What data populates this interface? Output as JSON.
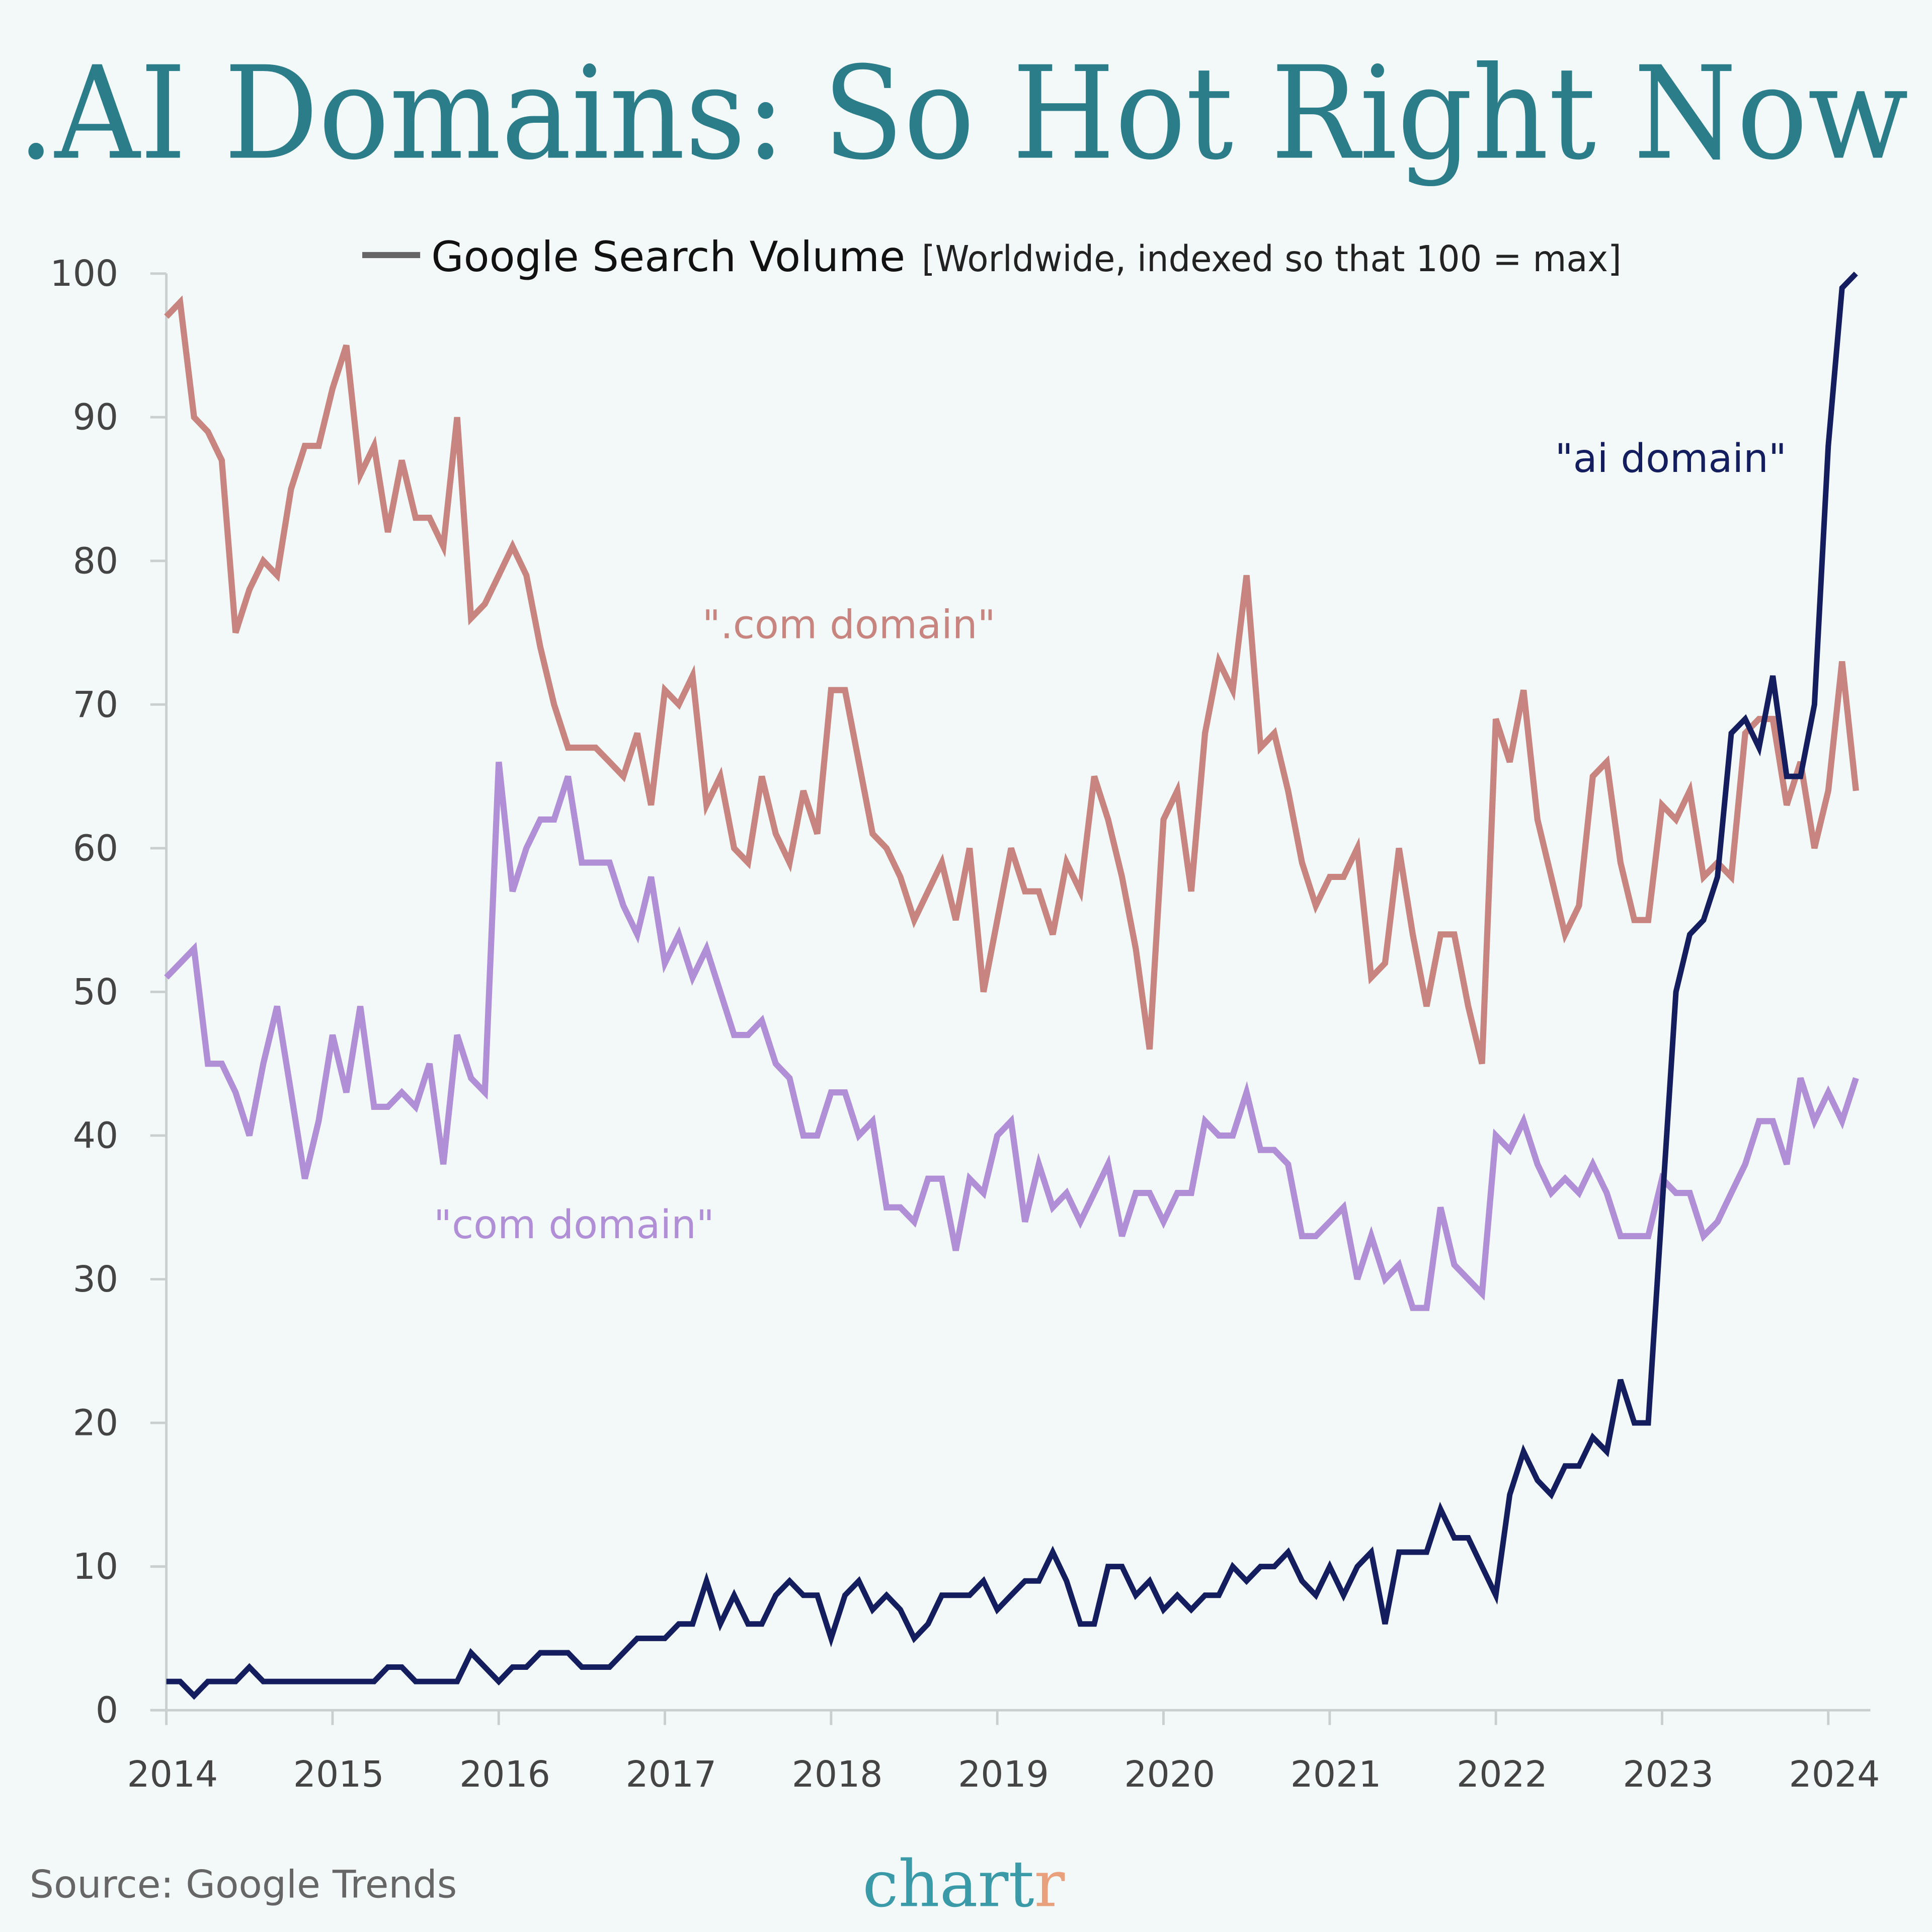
{
  "title": ".AI Domains: So Hot Right Now",
  "legend": {
    "label": "Google Search Volume",
    "note": "[Worldwide, indexed so that 100 = max]"
  },
  "source": "Source: Google Trends",
  "logo": {
    "main": "chart",
    "accent": "r",
    "main_color": "#3a9aa8",
    "accent_color": "#e9a07c"
  },
  "chart_data": {
    "type": "line",
    "title": ".AI Domains: So Hot Right Now",
    "xlabel": "",
    "ylabel": "",
    "ylim": [
      0,
      100
    ],
    "yticks": [
      "0",
      "10",
      "20",
      "30",
      "40",
      "50",
      "60",
      "70",
      "80",
      "90",
      "100"
    ],
    "xticks": [
      "2014",
      "2015",
      "2016",
      "2017",
      "2018",
      "2019",
      "2020",
      "2021",
      "2022",
      "2023",
      "2024"
    ],
    "x_start": "2014-01",
    "x_frequency": "monthly",
    "grid": false,
    "legend_position": "top",
    "series": [
      {
        "name": "\".com domain\"",
        "color": "#c8857f",
        "values": [
          97,
          98,
          90,
          89,
          87,
          75,
          78,
          80,
          79,
          85,
          88,
          88,
          92,
          95,
          86,
          88,
          82,
          87,
          83,
          83,
          81,
          90,
          76,
          77,
          79,
          81,
          79,
          74,
          70,
          67,
          67,
          67,
          66,
          65,
          68,
          63,
          71,
          70,
          72,
          63,
          65,
          60,
          59,
          65,
          61,
          59,
          64,
          61,
          71,
          71,
          66,
          61,
          60,
          58,
          55,
          57,
          59,
          55,
          60,
          50,
          55,
          60,
          57,
          57,
          54,
          59,
          57,
          65,
          62,
          58,
          53,
          46,
          62,
          64,
          57,
          68,
          73,
          71,
          79,
          67,
          68,
          64,
          59,
          56,
          58,
          58,
          60,
          51,
          52,
          60,
          54,
          49,
          54,
          54,
          49,
          45,
          69,
          66,
          71,
          62,
          58,
          54,
          56,
          65,
          66,
          59,
          55,
          55,
          63,
          62,
          64,
          58,
          59,
          58,
          68,
          69,
          69,
          63,
          66,
          60,
          64,
          73,
          64
        ]
      },
      {
        "name": "\"com domain\"",
        "color": "#b08fd6",
        "values": [
          51,
          52,
          53,
          45,
          45,
          43,
          40,
          45,
          49,
          43,
          37,
          41,
          47,
          43,
          49,
          42,
          42,
          43,
          42,
          45,
          38,
          47,
          44,
          43,
          66,
          57,
          60,
          62,
          62,
          65,
          59,
          59,
          59,
          56,
          54,
          58,
          52,
          54,
          51,
          53,
          50,
          47,
          47,
          48,
          45,
          44,
          40,
          40,
          43,
          43,
          40,
          41,
          35,
          35,
          34,
          37,
          37,
          32,
          37,
          36,
          40,
          41,
          34,
          38,
          35,
          36,
          34,
          36,
          38,
          33,
          36,
          36,
          34,
          36,
          36,
          41,
          40,
          40,
          43,
          39,
          39,
          38,
          33,
          33,
          34,
          35,
          30,
          33,
          30,
          31,
          28,
          28,
          35,
          31,
          30,
          29,
          40,
          39,
          41,
          38,
          36,
          37,
          36,
          38,
          36,
          33,
          33,
          33,
          37,
          36,
          36,
          33,
          34,
          36,
          38,
          41,
          41,
          38,
          44,
          41,
          43,
          41,
          44
        ]
      },
      {
        "name": "\"ai domain\"",
        "color": "#141e5e",
        "values": [
          2,
          2,
          1,
          2,
          2,
          2,
          3,
          2,
          2,
          2,
          2,
          2,
          2,
          2,
          2,
          2,
          3,
          3,
          2,
          2,
          2,
          2,
          4,
          3,
          2,
          3,
          3,
          4,
          4,
          4,
          3,
          3,
          3,
          4,
          5,
          5,
          5,
          6,
          6,
          9,
          6,
          8,
          6,
          6,
          8,
          9,
          8,
          8,
          5,
          8,
          9,
          7,
          8,
          7,
          5,
          6,
          8,
          8,
          8,
          9,
          7,
          8,
          9,
          9,
          11,
          9,
          6,
          6,
          10,
          10,
          8,
          9,
          7,
          8,
          7,
          8,
          8,
          10,
          9,
          10,
          10,
          11,
          9,
          8,
          10,
          8,
          10,
          11,
          6,
          11,
          11,
          11,
          14,
          12,
          12,
          10,
          8,
          15,
          18,
          16,
          15,
          17,
          17,
          19,
          18,
          23,
          20,
          20,
          35,
          50,
          54,
          55,
          58,
          68,
          69,
          67,
          72,
          65,
          65,
          70,
          88,
          99,
          100
        ]
      }
    ]
  }
}
